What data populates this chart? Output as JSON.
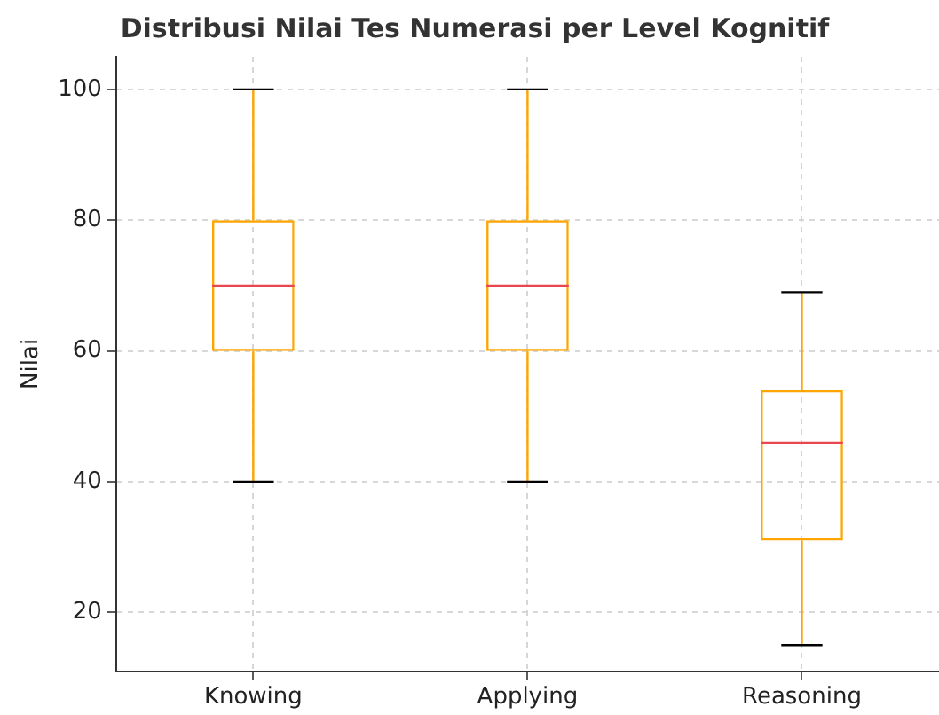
{
  "chart_data": {
    "type": "box",
    "title": "Distribusi Nilai Tes Numerasi per Level Kognitif",
    "ylabel": "Nilai",
    "categories": [
      "Knowing",
      "Applying",
      "Reasoning"
    ],
    "boxes": [
      {
        "low": 40,
        "q1": 60,
        "median": 70,
        "q3": 80,
        "high": 100
      },
      {
        "low": 40,
        "q1": 60,
        "median": 70,
        "q3": 80,
        "high": 100
      },
      {
        "low": 15,
        "q1": 31,
        "median": 46,
        "q3": 54,
        "high": 69
      }
    ],
    "color": "#ffa500",
    "ylim": [
      11,
      105
    ],
    "yticks": [
      20,
      40,
      60,
      80,
      100
    ],
    "grid": true
  }
}
